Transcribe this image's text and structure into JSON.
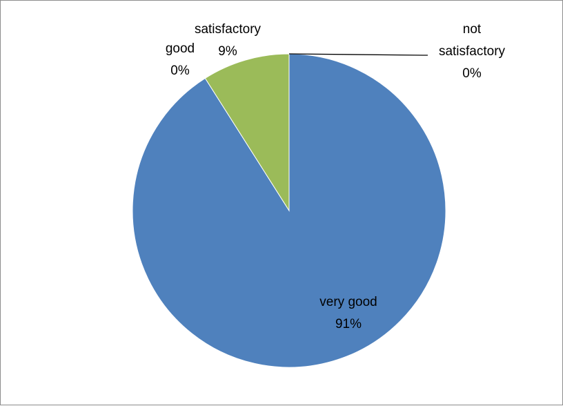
{
  "chart_data": {
    "type": "pie",
    "slices": [
      {
        "label": "very good",
        "value": 91,
        "value_text": "91%",
        "color": "#4f81bd"
      },
      {
        "label": "good",
        "value": 0,
        "value_text": "0%",
        "color": "#c0504d"
      },
      {
        "label": "satisfactory",
        "value": 9,
        "value_text": "9%",
        "color": "#9bbb59"
      },
      {
        "label": "not satisfactory",
        "value": 0,
        "value_text": "0%",
        "color": "#8064a2"
      }
    ],
    "title": "",
    "legend": "none"
  }
}
